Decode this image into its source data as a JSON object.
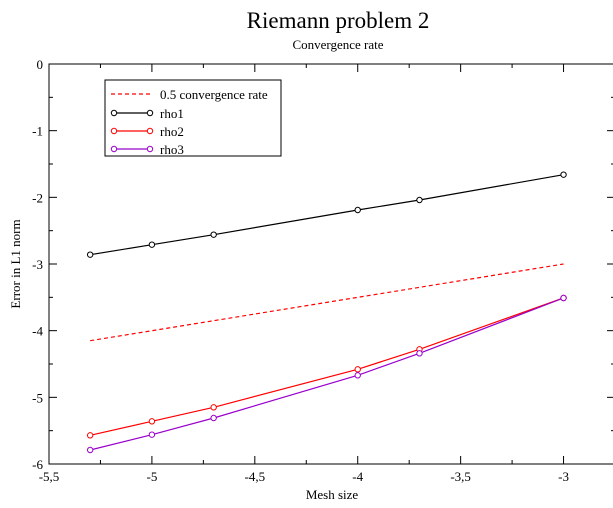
{
  "chart_data": {
    "type": "line",
    "title": "Riemann problem 2",
    "subtitle": "Convergence rate",
    "xlabel": "Mesh size",
    "ylabel": "Error in L1 norm",
    "xlim": [
      -5.5,
      -2.75
    ],
    "ylim": [
      -6,
      0
    ],
    "x_ticks": [
      -5.5,
      -5,
      -4.5,
      -4,
      -3.5,
      -3
    ],
    "x_tick_labels": [
      "-5,5",
      "-5",
      "-4,5",
      "-4",
      "-3,5",
      "-3"
    ],
    "y_ticks": [
      0,
      -1,
      -2,
      -3,
      -4,
      -5,
      -6
    ],
    "y_tick_labels": [
      "0",
      "-1",
      "-2",
      "-3",
      "-4",
      "-5",
      "-6"
    ],
    "grid": false,
    "legend_position": "top-left",
    "series": [
      {
        "name": "0.5 convergence rate",
        "color": "#ff0000",
        "style": "dashed",
        "marker": "none",
        "x": [
          -5.3,
          -3.0
        ],
        "y": [
          -4.15,
          -3.0
        ]
      },
      {
        "name": "rho1",
        "color": "#000000",
        "style": "solid",
        "marker": "circle",
        "x": [
          -5.3,
          -5.0,
          -4.7,
          -4.0,
          -3.7,
          -3.0
        ],
        "y": [
          -2.86,
          -2.71,
          -2.56,
          -2.19,
          -2.04,
          -1.66
        ]
      },
      {
        "name": "rho2",
        "color": "#ff0000",
        "style": "solid",
        "marker": "circle",
        "x": [
          -5.3,
          -5.0,
          -4.7,
          -4.0,
          -3.7,
          -3.0
        ],
        "y": [
          -5.57,
          -5.36,
          -5.15,
          -4.58,
          -4.28,
          -3.51
        ]
      },
      {
        "name": "rho3",
        "color": "#9900cc",
        "style": "solid",
        "marker": "circle",
        "x": [
          -5.3,
          -5.0,
          -4.7,
          -4.0,
          -3.7,
          -3.0
        ],
        "y": [
          -5.79,
          -5.56,
          -5.31,
          -4.67,
          -4.34,
          -3.51
        ]
      }
    ]
  }
}
